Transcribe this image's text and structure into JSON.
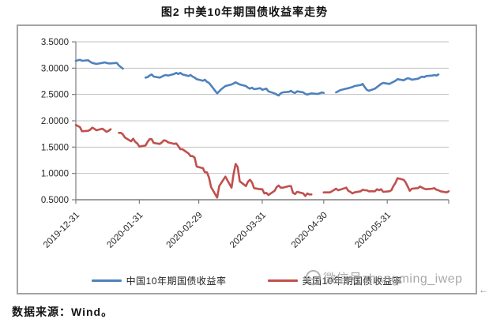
{
  "page": {
    "title": "图2 中美10年期国债收益率走势",
    "source_note": "数据来源：Wind。",
    "watermark_text": "微信号zhangming_iwep",
    "paragraph_mark": "←"
  },
  "colors": {
    "china_line": "#4F81BD",
    "us_line": "#C0504D",
    "gridline": "#c3c3c3",
    "axis": "#7f7f7f",
    "box_border": "#a3a3a3",
    "tick_text": "#262626"
  },
  "chart_data": {
    "type": "line",
    "title": "图2 中美10年期国债收益率走势",
    "grid": true,
    "legend_position": "bottom",
    "x_axis": {
      "tick_labels": [
        "2019-12-31",
        "2020-01-31",
        "2020-02-29",
        "2020-03-31",
        "2020-04-30",
        "2020-05-31"
      ],
      "tick_days": [
        0,
        31,
        60,
        91,
        121,
        152
      ],
      "domain_days": [
        0,
        182
      ]
    },
    "y_axis": {
      "tick_labels": [
        "3.5000",
        "3.0000",
        "2.5000",
        "2.0000",
        "1.5000",
        "1.0000",
        "0.5000"
      ],
      "tick_values": [
        3.5,
        3.0,
        2.5,
        2.0,
        1.5,
        1.0,
        0.5
      ],
      "range": [
        0.5,
        3.5
      ]
    },
    "series": [
      {
        "name": "中国10年期国债收益率",
        "color": "#4F81BD",
        "segments": [
          [
            [
              0,
              3.14
            ],
            [
              2,
              3.16
            ],
            [
              3,
              3.14
            ],
            [
              6,
              3.15
            ],
            [
              7,
              3.12
            ],
            [
              8,
              3.1
            ],
            [
              9,
              3.09
            ],
            [
              10,
              3.08
            ],
            [
              13,
              3.1
            ],
            [
              14,
              3.11
            ],
            [
              15,
              3.1
            ],
            [
              16,
              3.09
            ],
            [
              17,
              3.09
            ],
            [
              20,
              3.1
            ],
            [
              21,
              3.05
            ],
            [
              22,
              3.02
            ],
            [
              23,
              2.99
            ]
          ],
          [
            [
              34,
              2.82
            ],
            [
              35,
              2.83
            ],
            [
              36,
              2.86
            ],
            [
              37,
              2.88
            ],
            [
              38,
              2.84
            ],
            [
              41,
              2.82
            ],
            [
              42,
              2.84
            ],
            [
              43,
              2.86
            ],
            [
              44,
              2.87
            ],
            [
              45,
              2.86
            ],
            [
              48,
              2.89
            ],
            [
              49,
              2.91
            ],
            [
              50,
              2.89
            ],
            [
              51,
              2.91
            ],
            [
              52,
              2.88
            ],
            [
              55,
              2.85
            ],
            [
              56,
              2.87
            ],
            [
              57,
              2.84
            ],
            [
              58,
              2.82
            ],
            [
              59,
              2.79
            ],
            [
              62,
              2.76
            ],
            [
              63,
              2.78
            ],
            [
              64,
              2.74
            ],
            [
              65,
              2.72
            ],
            [
              66,
              2.67
            ],
            [
              69,
              2.52
            ],
            [
              70,
              2.56
            ],
            [
              71,
              2.6
            ],
            [
              72,
              2.63
            ],
            [
              73,
              2.66
            ],
            [
              76,
              2.69
            ],
            [
              77,
              2.71
            ],
            [
              78,
              2.73
            ],
            [
              79,
              2.71
            ],
            [
              80,
              2.69
            ],
            [
              83,
              2.66
            ],
            [
              84,
              2.63
            ],
            [
              85,
              2.61
            ],
            [
              86,
              2.63
            ],
            [
              87,
              2.6
            ],
            [
              90,
              2.62
            ],
            [
              91,
              2.59
            ],
            [
              92,
              2.6
            ],
            [
              93,
              2.61
            ],
            [
              94,
              2.56
            ],
            [
              97,
              2.52
            ],
            [
              98,
              2.5
            ],
            [
              99,
              2.48
            ],
            [
              100,
              2.52
            ],
            [
              101,
              2.54
            ],
            [
              104,
              2.55
            ],
            [
              105,
              2.57
            ],
            [
              106,
              2.54
            ],
            [
              107,
              2.53
            ],
            [
              108,
              2.56
            ],
            [
              111,
              2.54
            ],
            [
              112,
              2.51
            ],
            [
              113,
              2.5
            ],
            [
              114,
              2.51
            ],
            [
              115,
              2.52
            ],
            [
              118,
              2.51
            ],
            [
              119,
              2.52
            ],
            [
              120,
              2.54
            ],
            [
              121,
              2.53
            ]
          ],
          [
            [
              127,
              2.54
            ],
            [
              128,
              2.56
            ],
            [
              129,
              2.58
            ],
            [
              132,
              2.61
            ],
            [
              133,
              2.62
            ],
            [
              134,
              2.63
            ],
            [
              135,
              2.64
            ],
            [
              136,
              2.66
            ],
            [
              139,
              2.68
            ],
            [
              140,
              2.7
            ],
            [
              141,
              2.64
            ],
            [
              142,
              2.59
            ],
            [
              143,
              2.57
            ],
            [
              146,
              2.61
            ],
            [
              147,
              2.64
            ],
            [
              148,
              2.67
            ],
            [
              149,
              2.7
            ],
            [
              150,
              2.72
            ],
            [
              153,
              2.7
            ],
            [
              154,
              2.72
            ],
            [
              155,
              2.74
            ],
            [
              156,
              2.76
            ],
            [
              157,
              2.79
            ],
            [
              160,
              2.77
            ],
            [
              161,
              2.79
            ],
            [
              162,
              2.81
            ],
            [
              163,
              2.8
            ],
            [
              164,
              2.78
            ],
            [
              167,
              2.8
            ],
            [
              168,
              2.82
            ],
            [
              169,
              2.84
            ],
            [
              170,
              2.83
            ],
            [
              171,
              2.85
            ],
            [
              174,
              2.86
            ],
            [
              175,
              2.87
            ],
            [
              176,
              2.86
            ],
            [
              177,
              2.88
            ]
          ]
        ]
      },
      {
        "name": "美国10年期国债收益率",
        "color": "#C0504D",
        "segments": [
          [
            [
              0,
              1.92
            ],
            [
              2,
              1.88
            ],
            [
              3,
              1.8
            ],
            [
              6,
              1.81
            ],
            [
              7,
              1.83
            ],
            [
              8,
              1.87
            ],
            [
              9,
              1.85
            ],
            [
              10,
              1.82
            ],
            [
              13,
              1.85
            ],
            [
              14,
              1.82
            ],
            [
              15,
              1.79
            ],
            [
              16,
              1.81
            ],
            [
              17,
              1.84
            ]
          ],
          [
            [
              21,
              1.77
            ],
            [
              22,
              1.77
            ],
            [
              23,
              1.74
            ],
            [
              24,
              1.68
            ],
            [
              27,
              1.61
            ],
            [
              28,
              1.66
            ],
            [
              29,
              1.6
            ],
            [
              30,
              1.57
            ],
            [
              31,
              1.51
            ],
            [
              34,
              1.53
            ],
            [
              35,
              1.6
            ],
            [
              36,
              1.65
            ],
            [
              37,
              1.65
            ],
            [
              38,
              1.58
            ],
            [
              41,
              1.56
            ],
            [
              42,
              1.59
            ],
            [
              43,
              1.63
            ],
            [
              44,
              1.62
            ],
            [
              45,
              1.59
            ],
            [
              48,
              1.56
            ],
            [
              49,
              1.57
            ],
            [
              50,
              1.52
            ],
            [
              51,
              1.46
            ],
            [
              52,
              1.46
            ],
            [
              55,
              1.38
            ],
            [
              56,
              1.33
            ],
            [
              57,
              1.33
            ],
            [
              58,
              1.3
            ],
            [
              59,
              1.13
            ],
            [
              62,
              1.1
            ],
            [
              63,
              1.02
            ],
            [
              64,
              1.02
            ],
            [
              65,
              0.92
            ],
            [
              66,
              0.74
            ],
            [
              69,
              0.54
            ],
            [
              70,
              0.76
            ],
            [
              71,
              0.82
            ],
            [
              72,
              0.88
            ],
            [
              73,
              0.94
            ],
            [
              76,
              0.73
            ],
            [
              77,
              0.99
            ],
            [
              78,
              1.18
            ],
            [
              79,
              1.12
            ],
            [
              80,
              0.85
            ],
            [
              83,
              0.76
            ],
            [
              84,
              0.84
            ],
            [
              85,
              0.88
            ],
            [
              86,
              0.83
            ],
            [
              87,
              0.72
            ],
            [
              90,
              0.7
            ],
            [
              91,
              0.7
            ],
            [
              92,
              0.62
            ],
            [
              93,
              0.63
            ],
            [
              94,
              0.59
            ],
            [
              97,
              0.67
            ],
            [
              98,
              0.74
            ],
            [
              99,
              0.77
            ],
            [
              100,
              0.73
            ],
            [
              101,
              0.73
            ],
            [
              104,
              0.76
            ],
            [
              105,
              0.76
            ],
            [
              106,
              0.63
            ],
            [
              107,
              0.61
            ],
            [
              108,
              0.65
            ],
            [
              111,
              0.62
            ],
            [
              112,
              0.57
            ],
            [
              113,
              0.62
            ],
            [
              114,
              0.6
            ],
            [
              115,
              0.6
            ]
          ],
          [
            [
              121,
              0.64
            ],
            [
              124,
              0.64
            ],
            [
              125,
              0.66
            ],
            [
              127,
              0.71
            ],
            [
              128,
              0.68
            ],
            [
              129,
              0.69
            ],
            [
              132,
              0.73
            ],
            [
              133,
              0.67
            ],
            [
              134,
              0.65
            ],
            [
              135,
              0.62
            ],
            [
              136,
              0.64
            ],
            [
              139,
              0.66
            ],
            [
              140,
              0.69
            ],
            [
              141,
              0.68
            ],
            [
              142,
              0.68
            ],
            [
              143,
              0.66
            ],
            [
              146,
              0.66
            ],
            [
              147,
              0.7
            ],
            [
              148,
              0.68
            ],
            [
              149,
              0.7
            ],
            [
              150,
              0.65
            ],
            [
              153,
              0.66
            ],
            [
              154,
              0.68
            ],
            [
              155,
              0.76
            ],
            [
              156,
              0.82
            ],
            [
              157,
              0.91
            ],
            [
              160,
              0.88
            ],
            [
              161,
              0.83
            ],
            [
              162,
              0.75
            ],
            [
              163,
              0.67
            ],
            [
              164,
              0.71
            ],
            [
              167,
              0.72
            ],
            [
              168,
              0.75
            ],
            [
              169,
              0.73
            ],
            [
              170,
              0.71
            ],
            [
              171,
              0.7
            ],
            [
              174,
              0.71
            ],
            [
              175,
              0.72
            ],
            [
              176,
              0.69
            ],
            [
              177,
              0.68
            ],
            [
              178,
              0.66
            ],
            [
              181,
              0.64
            ],
            [
              182,
              0.66
            ]
          ]
        ]
      }
    ]
  }
}
